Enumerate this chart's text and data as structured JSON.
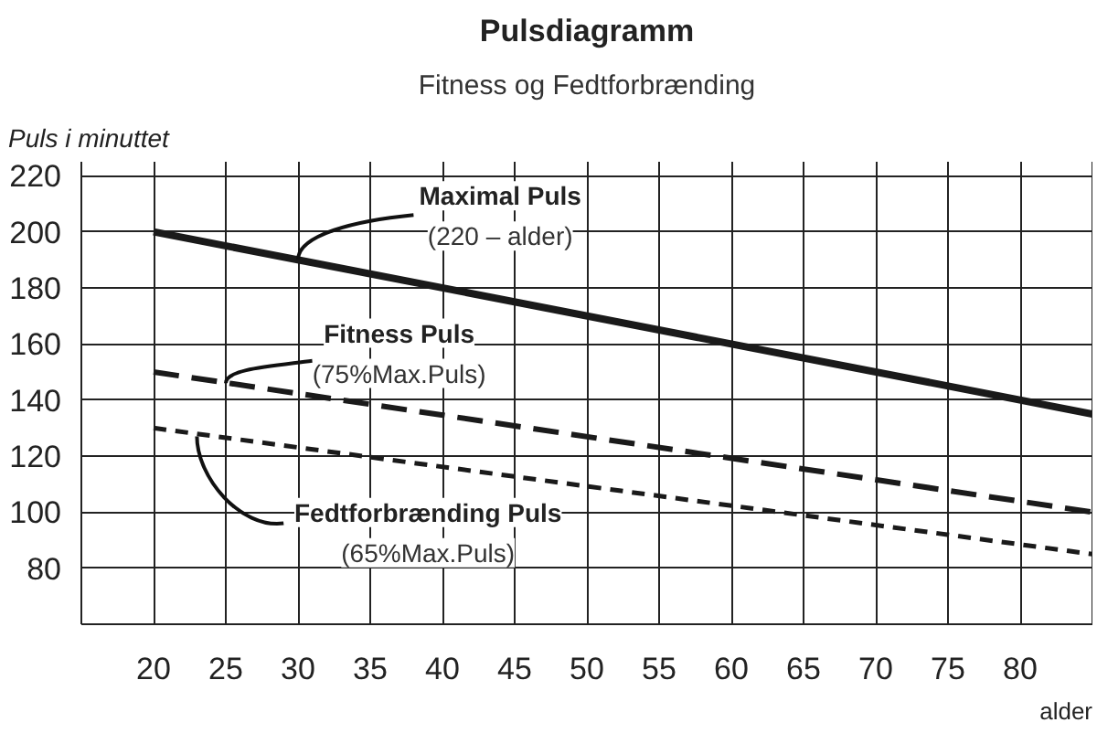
{
  "chart_data": {
    "type": "line",
    "title": "Pulsdiagramm",
    "subtitle": "Fitness og Fedtforbrænding",
    "xlabel": "alder",
    "ylabel": "Puls i minuttet",
    "x": [
      20,
      85
    ],
    "series": [
      {
        "name": "Maximal Puls",
        "color": "#1a1a1a",
        "values": [
          200,
          135
        ],
        "line_style": "solid"
      },
      {
        "name": "Fitness Puls",
        "color": "#1a1a1a",
        "values": [
          150,
          100
        ],
        "line_style": "dashed"
      },
      {
        "name": "Fedtforbrænding Puls",
        "color": "#1a1a1a",
        "values": [
          130,
          85
        ],
        "line_style": "dotted"
      }
    ],
    "annotations": [
      {
        "text": "(220 – alder)",
        "x": 30,
        "y": 190
      },
      {
        "text": "(75%Max.Puls)",
        "x": 25,
        "y": 146
      },
      "(65%Max.Puls)"
    ],
    "xlim": [
      15,
      85
    ],
    "ylim": [
      60,
      225
    ],
    "xticks": [
      20,
      25,
      30,
      35,
      40,
      45,
      50,
      55,
      60,
      65,
      70,
      75,
      80
    ],
    "yticks": [
      80,
      100,
      120,
      140,
      160,
      180,
      200,
      220
    ],
    "grid": true,
    "marker": "none"
  }
}
